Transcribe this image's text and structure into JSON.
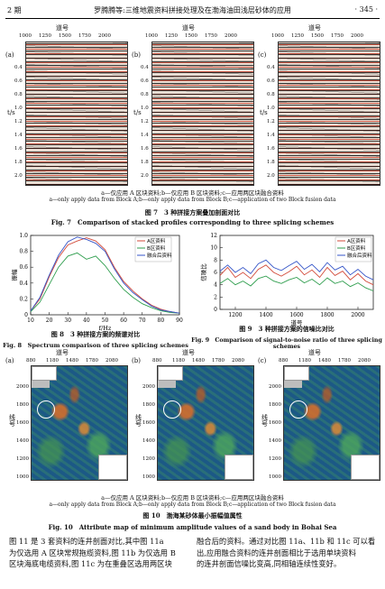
{
  "header": {
    "issue": "2 期",
    "title": "罗腾腾等:三维地震资料拼接处理及在渤海油田浅层砂体的应用",
    "page": "· 345 ·"
  },
  "fig7": {
    "panels": [
      {
        "letter": "(a)",
        "trace_label": "道号",
        "ticks": [
          "1000",
          "1250",
          "1500",
          "1750",
          "2000"
        ]
      },
      {
        "letter": "(b)",
        "trace_label": "道号",
        "ticks": [
          "1000",
          "1250",
          "1500",
          "1750",
          "2000"
        ]
      },
      {
        "letter": "(c)",
        "trace_label": "道号",
        "ticks": [
          "1000",
          "1250",
          "1500",
          "1750",
          "2000"
        ]
      }
    ],
    "y_label": "t/s",
    "y_ticks": [
      "0.4",
      "0.6",
      "0.8",
      "1.0",
      "1.2",
      "1.4",
      "1.6",
      "1.8",
      "2.0"
    ],
    "caption_cn_sub": "a—仅应用 A 区块资料;b—仅应用 B 区块资料;c—应用两区块融合资料",
    "caption_en_sub": "a—only apply data from Block A;b—only apply data from Block B;c—application of two Block fusion data",
    "caption_cn": "图 7　3 种拼接方案叠加剖面对比",
    "caption_en": "Fig. 7　Comparison of stacked profiles corresponding to three splicing schemes"
  },
  "fig8": {
    "caption_cn": "图 8　3 种拼接方案的频谱对比",
    "caption_en": "Fig. 8　Spectrum comparison of three splicing schemes"
  },
  "fig9": {
    "caption_cn": "图 9　3 种拼接方案的信噪比对比",
    "caption_en": "Fig. 9　Comparison of signal-to-noise ratio of three splicing schemes"
  },
  "fig10": {
    "panels": [
      {
        "letter": "(a)",
        "ticks": [
          "880",
          "1180",
          "1480",
          "1780",
          "2080"
        ]
      },
      {
        "letter": "(b)",
        "ticks": [
          "880",
          "1180",
          "1480",
          "1780",
          "2080"
        ]
      },
      {
        "letter": "(c)",
        "ticks": [
          "880",
          "1180",
          "1480",
          "1780",
          "2080"
        ]
      }
    ],
    "trace_label": "道号",
    "line_label": "线号",
    "y_ticks": [
      "2000",
      "1800",
      "1600",
      "1400",
      "1200",
      "1000"
    ],
    "caption_cn_sub": "a—仅应用 A 区块资料;b—仅应用 B 区块资料;c—应用两区块融合资料",
    "caption_en_sub": "a—only apply data from Block A;b—only apply data from Block B;c—application of two Block fusion data",
    "caption_cn": "图 10　渤海某砂体最小振幅值属性",
    "caption_en": "Fig. 10　Attribute map of minimum amplitude values of a sand body in Bohai Sea"
  },
  "body_text": {
    "left": [
      "图 11 是 3 套资料的连井剖面对比,其中图 11a",
      "为仅选用 A 区块常规拖缆资料,图 11b 为仅选用 B",
      "区块海底电缆资料,图 11c 为在重叠区选用两区块"
    ],
    "right": [
      "融合后的资料。通过对比图 11a、11b 和 11c 可以看",
      "出,应用融合资料的连井剖面相比于选用单块资料",
      "的连井剖面信噪比变高,同相轴连续性变好。"
    ]
  },
  "colors": {
    "seriesA": "#d24a3a",
    "seriesB": "#2f9e4e",
    "seriesC": "#3656c8"
  },
  "chart_data": [
    {
      "type": "line",
      "xlabel": "f/Hz",
      "ylabel": "振幅",
      "xlim": [
        10,
        90
      ],
      "ylim": [
        0,
        1.0
      ],
      "x_ticks": [
        "10",
        "20",
        "30",
        "40",
        "50",
        "60",
        "70",
        "80",
        "90"
      ],
      "y_ticks": [
        "0",
        "0.2",
        "0.4",
        "0.6",
        "0.8",
        "1.0"
      ],
      "legend": "top-right",
      "x": [
        10,
        15,
        20,
        25,
        30,
        35,
        40,
        45,
        50,
        55,
        60,
        65,
        70,
        75,
        80,
        85,
        90
      ],
      "series": [
        {
          "name": "A区资料",
          "color": "#d24a3a",
          "values": [
            0.05,
            0.2,
            0.48,
            0.72,
            0.88,
            0.93,
            0.97,
            0.93,
            0.82,
            0.6,
            0.42,
            0.3,
            0.2,
            0.12,
            0.07,
            0.04,
            0.02
          ]
        },
        {
          "name": "B区资料",
          "color": "#2f9e4e",
          "values": [
            0.04,
            0.16,
            0.38,
            0.6,
            0.74,
            0.78,
            0.7,
            0.74,
            0.62,
            0.46,
            0.32,
            0.22,
            0.14,
            0.09,
            0.05,
            0.03,
            0.02
          ]
        },
        {
          "name": "融合后资料",
          "color": "#3656c8",
          "values": [
            0.05,
            0.22,
            0.5,
            0.75,
            0.92,
            0.98,
            0.95,
            0.9,
            0.8,
            0.58,
            0.4,
            0.28,
            0.19,
            0.11,
            0.06,
            0.04,
            0.02
          ]
        }
      ]
    },
    {
      "type": "line",
      "xlabel": "道号",
      "ylabel": "信噪比",
      "xlim": [
        1100,
        2100
      ],
      "ylim": [
        0,
        12
      ],
      "x_ticks": [
        "1200",
        "1400",
        "1600",
        "1800",
        "2000"
      ],
      "y_ticks": [
        "0",
        "2",
        "4",
        "6",
        "8",
        "10",
        "12"
      ],
      "legend": "top-right",
      "x": [
        1100,
        1150,
        1200,
        1250,
        1300,
        1350,
        1400,
        1450,
        1500,
        1550,
        1600,
        1650,
        1700,
        1750,
        1800,
        1850,
        1900,
        1950,
        2000,
        2050,
        2100
      ],
      "series": [
        {
          "name": "A区资料",
          "color": "#d24a3a",
          "values": [
            5.5,
            6.8,
            5.2,
            6.0,
            5.0,
            6.5,
            7.2,
            6.0,
            5.4,
            6.1,
            7.0,
            5.6,
            6.4,
            5.2,
            6.8,
            5.5,
            6.2,
            4.8,
            5.8,
            4.6,
            4.0
          ]
        },
        {
          "name": "B区资料",
          "color": "#2f9e4e",
          "values": [
            4.2,
            5.0,
            4.0,
            4.6,
            3.8,
            5.0,
            5.4,
            4.6,
            4.2,
            4.8,
            5.2,
            4.3,
            4.9,
            4.0,
            5.1,
            4.2,
            4.6,
            3.7,
            4.3,
            3.5,
            3.0
          ]
        },
        {
          "name": "融合后资料",
          "color": "#3656c8",
          "values": [
            6.2,
            7.2,
            6.0,
            6.8,
            5.8,
            7.4,
            8.0,
            6.8,
            6.3,
            7.1,
            7.8,
            6.5,
            7.3,
            6.1,
            7.6,
            6.4,
            7.0,
            5.6,
            6.5,
            5.4,
            4.8
          ]
        }
      ]
    }
  ]
}
